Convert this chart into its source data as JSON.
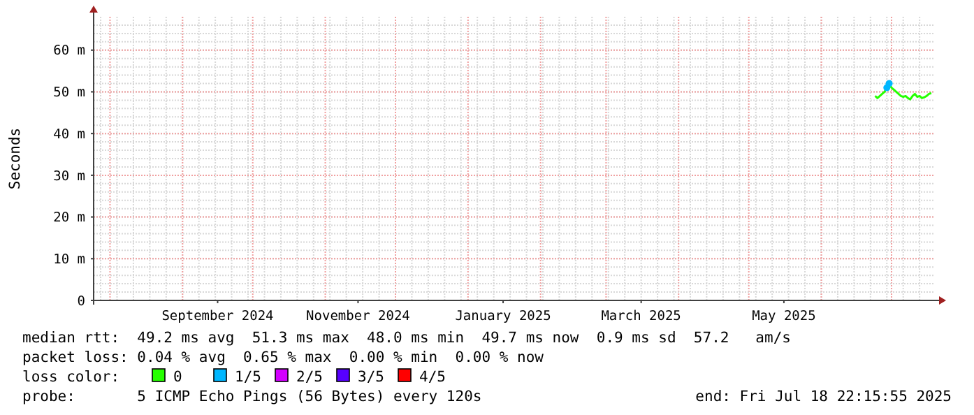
{
  "chart_data": {
    "type": "line",
    "ylabel": "Seconds",
    "x": [
      "2025-06-24",
      "2025-06-25",
      "2025-06-26",
      "2025-06-27",
      "2025-06-28",
      "2025-06-29",
      "2025-06-30",
      "2025-07-01",
      "2025-07-02",
      "2025-07-03",
      "2025-07-04",
      "2025-07-05",
      "2025-07-06",
      "2025-07-07",
      "2025-07-08",
      "2025-07-09",
      "2025-07-10",
      "2025-07-11",
      "2025-07-12",
      "2025-07-13",
      "2025-07-14",
      "2025-07-15",
      "2025-07-16",
      "2025-07-17",
      "2025-07-18"
    ],
    "series": [
      {
        "name": "0",
        "color": "#26ff00",
        "values": [
          49,
          48.5,
          49,
          49.5,
          50,
          51,
          52,
          51,
          50.5,
          50,
          49.5,
          49,
          48.8,
          49,
          48.5,
          48.2,
          49,
          49.5,
          48.8,
          49,
          48.5,
          48.7,
          49,
          49.5,
          49.7
        ]
      },
      {
        "name": "1/5",
        "type": "scatter",
        "marker": "circle",
        "color": "#00b7ff",
        "values": [
          null,
          null,
          null,
          null,
          null,
          51,
          52,
          null,
          null,
          null,
          null,
          null,
          null,
          null,
          null,
          null,
          null,
          null,
          null,
          null,
          null,
          null,
          null,
          null,
          null
        ]
      },
      {
        "name": "2/5",
        "color": "#d300ff",
        "values": [
          null,
          null,
          null,
          null,
          null,
          null,
          null,
          null,
          null,
          null,
          null,
          null,
          null,
          null,
          null,
          null,
          null,
          null,
          null,
          null,
          null,
          null,
          null,
          null,
          null
        ]
      },
      {
        "name": "3/5",
        "color": "#5700ff",
        "values": [
          null,
          null,
          null,
          null,
          null,
          null,
          null,
          null,
          null,
          null,
          null,
          null,
          null,
          null,
          null,
          null,
          null,
          null,
          null,
          null,
          null,
          null,
          null,
          null,
          null
        ]
      },
      {
        "name": "4/5",
        "color": "#ff0000",
        "values": [
          null,
          null,
          null,
          null,
          null,
          null,
          null,
          null,
          null,
          null,
          null,
          null,
          null,
          null,
          null,
          null,
          null,
          null,
          null,
          null,
          null,
          null,
          null,
          null,
          null
        ]
      }
    ],
    "xlim": [
      "2024-07-25",
      "2025-07-18T22:15"
    ],
    "xticks": [
      {
        "value": "2024-09-16",
        "label": "September 2024"
      },
      {
        "value": "2024-11-15",
        "label": "November 2024"
      },
      {
        "value": "2025-01-16",
        "label": "January 2025"
      },
      {
        "value": "2025-03-16",
        "label": "March 2025"
      },
      {
        "value": "2025-05-16",
        "label": "May 2025"
      }
    ],
    "ylim": [
      0,
      68
    ],
    "yticks": [
      0,
      {
        "value": 10,
        "label": "10 m"
      },
      {
        "value": 20,
        "label": "20 m"
      },
      {
        "value": 30,
        "label": "30 m"
      },
      {
        "value": 40,
        "label": "40 m"
      },
      {
        "value": 50,
        "label": "50 m"
      },
      {
        "value": 60,
        "label": "60 m"
      }
    ],
    "grid": true,
    "marker": "none",
    "line_style": "solid",
    "legend": "bottom",
    "legend_title": "loss color:",
    "annotations": [
      "median rtt:  49.2 ms avg  51.3 ms max  48.0 ms min  49.7 ms now  0.9 ms sd  57.2   am/s",
      "packet loss: 0.04 % avg  0.65 % max  0.00 % min  0.00 % now",
      "probe:       5 ICMP Echo Pings (56 Bytes) every 120s",
      "end: Fri Jul 18 22:15:55 2025"
    ]
  }
}
